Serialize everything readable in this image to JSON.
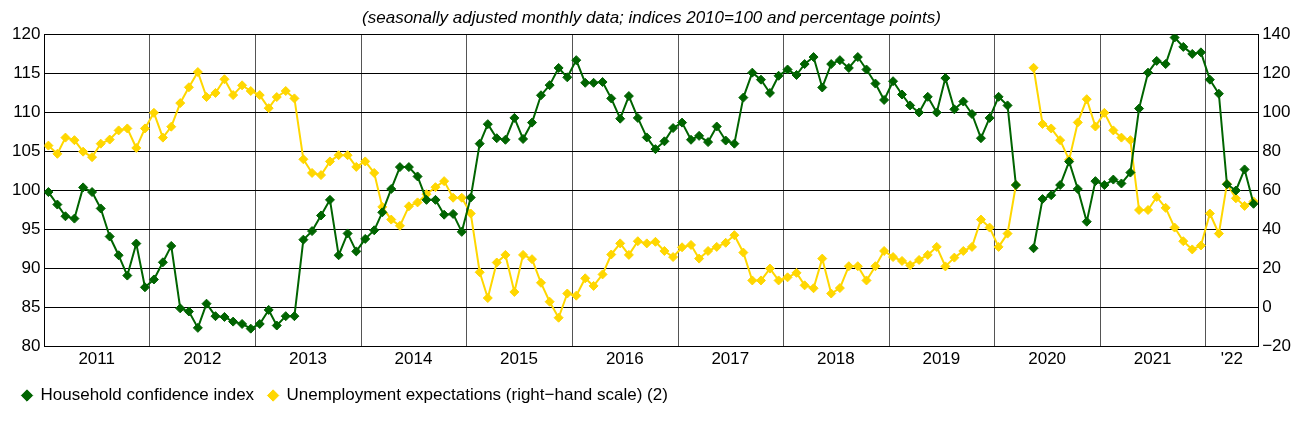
{
  "chart_data": {
    "type": "line",
    "subtitle": "(seasonally adjusted monthly data; indices 2010=100 and percentage points)",
    "x": [
      "2011-01-15",
      "2011-02-15",
      "2011-03-15",
      "2011-04-15",
      "2011-05-15",
      "2011-06-15",
      "2011-07-15",
      "2011-08-15",
      "2011-09-15",
      "2011-10-15",
      "2011-11-15",
      "2011-12-15",
      "2012-01-15",
      "2012-02-15",
      "2012-03-15",
      "2012-04-15",
      "2012-05-15",
      "2012-06-15",
      "2012-07-15",
      "2012-08-15",
      "2012-09-15",
      "2012-10-15",
      "2012-11-15",
      "2012-12-15",
      "2013-01-15",
      "2013-02-15",
      "2013-03-15",
      "2013-04-15",
      "2013-05-15",
      "2013-06-15",
      "2013-07-15",
      "2013-08-15",
      "2013-09-15",
      "2013-10-15",
      "2013-11-15",
      "2013-12-15",
      "2014-01-15",
      "2014-02-15",
      "2014-03-15",
      "2014-04-15",
      "2014-05-15",
      "2014-06-15",
      "2014-07-15",
      "2014-08-15",
      "2014-09-15",
      "2014-10-15",
      "2014-11-15",
      "2014-12-15",
      "2015-01-15",
      "2015-02-15",
      "2015-03-15",
      "2015-04-15",
      "2015-05-15",
      "2015-06-15",
      "2015-07-15",
      "2015-08-15",
      "2015-09-15",
      "2015-10-15",
      "2015-11-15",
      "2015-12-15",
      "2016-01-15",
      "2016-02-15",
      "2016-03-15",
      "2016-04-15",
      "2016-05-15",
      "2016-06-15",
      "2016-07-15",
      "2016-08-15",
      "2016-09-15",
      "2016-10-15",
      "2016-11-15",
      "2016-12-15",
      "2017-01-15",
      "2017-02-15",
      "2017-03-15",
      "2017-04-15",
      "2017-05-15",
      "2017-06-15",
      "2017-07-15",
      "2017-08-15",
      "2017-09-15",
      "2017-10-15",
      "2017-11-15",
      "2017-12-15",
      "2018-01-15",
      "2018-02-15",
      "2018-03-15",
      "2018-04-15",
      "2018-05-15",
      "2018-06-15",
      "2018-07-15",
      "2018-08-15",
      "2018-09-15",
      "2018-10-15",
      "2018-11-15",
      "2018-12-15",
      "2019-01-15",
      "2019-02-15",
      "2019-03-15",
      "2019-04-15",
      "2019-05-15",
      "2019-06-15",
      "2019-07-15",
      "2019-08-15",
      "2019-09-15",
      "2019-10-15",
      "2019-11-15",
      "2019-12-15",
      "2020-01-15",
      "2020-02-15",
      "2020-03-15",
      "2020-04-15",
      "2020-05-15",
      "2020-06-15",
      "2020-07-15",
      "2020-08-15",
      "2020-09-15",
      "2020-10-15",
      "2020-11-15",
      "2020-12-15",
      "2021-01-15",
      "2021-02-15",
      "2021-03-15",
      "2021-04-15",
      "2021-05-15",
      "2021-06-15",
      "2021-07-15",
      "2021-08-15",
      "2021-09-15",
      "2021-10-15",
      "2021-11-15",
      "2021-12-15",
      "2022-01-15",
      "2022-02-15",
      "2022-03-15",
      "2022-04-15",
      "2022-05-15",
      "2022-06-15"
    ],
    "series": [
      {
        "name": "Household confidence index",
        "color": "#006400",
        "values": [
          99.8,
          98.2,
          96.7,
          96.4,
          100.4,
          99.8,
          97.7,
          94.1,
          91.7,
          89.1,
          93.2,
          87.6,
          88.6,
          90.8,
          92.9,
          84.9,
          84.5,
          82.4,
          85.5,
          83.9,
          83.8,
          83.2,
          82.9,
          82.3,
          82.9,
          84.7,
          82.7,
          83.9,
          83.9,
          93.7,
          94.8,
          96.8,
          98.8,
          91.7,
          94.5,
          92.2,
          93.8,
          94.9,
          97.2,
          100.2,
          103.0,
          103.0,
          101.8,
          98.8,
          98.8,
          96.9,
          97.0,
          94.7,
          99.1,
          106.0,
          108.5,
          106.7,
          106.5,
          109.3,
          106.6,
          108.7,
          112.2,
          113.5,
          115.7,
          114.5,
          116.7,
          113.8,
          113.8,
          113.9,
          111.8,
          109.2,
          112.1,
          109.3,
          106.8,
          105.3,
          106.3,
          108.0,
          108.7,
          106.5,
          107.0,
          106.2,
          108.2,
          106.4,
          106.0,
          111.9,
          115.1,
          114.2,
          112.5,
          114.7,
          115.5,
          114.8,
          116.2,
          117.1,
          113.2,
          116.2,
          116.7,
          115.7,
          117.1,
          115.5,
          113.7,
          111.6,
          114.0,
          112.3,
          110.9,
          110.0,
          112.0,
          110.0,
          114.4,
          110.4,
          111.4,
          109.8,
          106.7,
          109.3,
          112.0,
          110.9,
          100.7,
          null,
          92.6,
          98.9,
          99.4,
          100.7,
          103.7,
          100.2,
          96.0,
          101.2,
          100.7,
          101.4,
          100.9,
          102.3,
          110.5,
          115.1,
          116.6,
          116.2,
          119.6,
          118.4,
          117.5,
          117.7,
          114.2,
          112.4,
          100.8,
          100.0,
          102.7,
          98.3
        ]
      },
      {
        "name": "Unemployment expectations (right−hand scale) (2)",
        "color": "#ffd700",
        "axis": "y2",
        "values": [
          83.0,
          78.8,
          87.1,
          85.8,
          79.9,
          77.1,
          84.0,
          86.1,
          90.8,
          91.8,
          81.8,
          91.8,
          99.8,
          87.1,
          92.7,
          104.8,
          112.9,
          120.7,
          107.9,
          110.0,
          117.0,
          108.9,
          113.9,
          111.0,
          108.9,
          102.2,
          107.9,
          111.0,
          107.2,
          76.0,
          69.0,
          67.9,
          74.9,
          78.1,
          78.1,
          72.1,
          74.9,
          69.0,
          51.6,
          45.1,
          41.9,
          51.9,
          53.9,
          58.1,
          61.7,
          64.8,
          56.3,
          56.3,
          48.2,
          18.1,
          4.9,
          23.1,
          27.0,
          8.0,
          27.0,
          24.8,
          12.7,
          3.0,
          -5.2,
          7.2,
          6.1,
          15.0,
          11.1,
          17.0,
          27.2,
          32.9,
          27.0,
          34.0,
          32.9,
          33.7,
          29.0,
          25.9,
          30.9,
          32.1,
          25.1,
          29.0,
          31.1,
          33.2,
          37.1,
          28.2,
          13.9,
          13.9,
          20.0,
          13.9,
          15.5,
          17.8,
          11.4,
          9.9,
          25.1,
          7.2,
          10.0,
          21.2,
          21.2,
          13.9,
          21.2,
          29.0,
          25.9,
          23.9,
          21.7,
          24.4,
          27.0,
          31.1,
          21.1,
          25.6,
          29.0,
          31.1,
          45.1,
          41.0,
          31.1,
          37.9,
          62.8,
          null,
          122.9,
          94.1,
          91.8,
          85.8,
          75.7,
          94.9,
          106.8,
          92.8,
          99.8,
          90.8,
          87.1,
          85.8,
          50.0,
          50.0,
          56.7,
          51.1,
          41.0,
          34.0,
          29.8,
          31.8,
          48.2,
          37.9,
          63.3,
          56.0,
          52.1,
          54.4
        ]
      }
    ],
    "xlim": [
      "2011-01-01",
      "2022-07-01"
    ],
    "xticks": [
      {
        "value": "2011-07-01",
        "label": "2011"
      },
      {
        "value": "2012-01-01",
        "label": null
      },
      {
        "value": "2012-07-01",
        "label": "2012"
      },
      {
        "value": "2013-01-01",
        "label": null
      },
      {
        "value": "2013-07-01",
        "label": "2013"
      },
      {
        "value": "2014-01-01",
        "label": null
      },
      {
        "value": "2014-07-01",
        "label": "2014"
      },
      {
        "value": "2015-01-01",
        "label": null
      },
      {
        "value": "2015-07-01",
        "label": "2015"
      },
      {
        "value": "2016-01-01",
        "label": null
      },
      {
        "value": "2016-07-01",
        "label": "2016"
      },
      {
        "value": "2017-01-01",
        "label": null
      },
      {
        "value": "2017-07-01",
        "label": "2017"
      },
      {
        "value": "2018-01-01",
        "label": null
      },
      {
        "value": "2018-07-01",
        "label": "2018"
      },
      {
        "value": "2019-01-01",
        "label": null
      },
      {
        "value": "2019-07-01",
        "label": "2019"
      },
      {
        "value": "2020-01-01",
        "label": null
      },
      {
        "value": "2020-07-01",
        "label": "2020"
      },
      {
        "value": "2021-01-01",
        "label": null
      },
      {
        "value": "2021-07-01",
        "label": "2021"
      },
      {
        "value": "2022-01-01",
        "label": null
      },
      {
        "value": "2022-04-01",
        "label": "'22"
      }
    ],
    "ylim": [
      80,
      120
    ],
    "yticks": [
      80,
      85,
      90,
      95,
      100,
      105,
      110,
      115,
      120
    ],
    "y2lim": [
      -20,
      140
    ],
    "y2ticks": [
      -20,
      0,
      20,
      40,
      60,
      80,
      100,
      120,
      140
    ],
    "grid": true,
    "legend": "bottom left",
    "marker": "diamond",
    "line_style": "solid"
  }
}
